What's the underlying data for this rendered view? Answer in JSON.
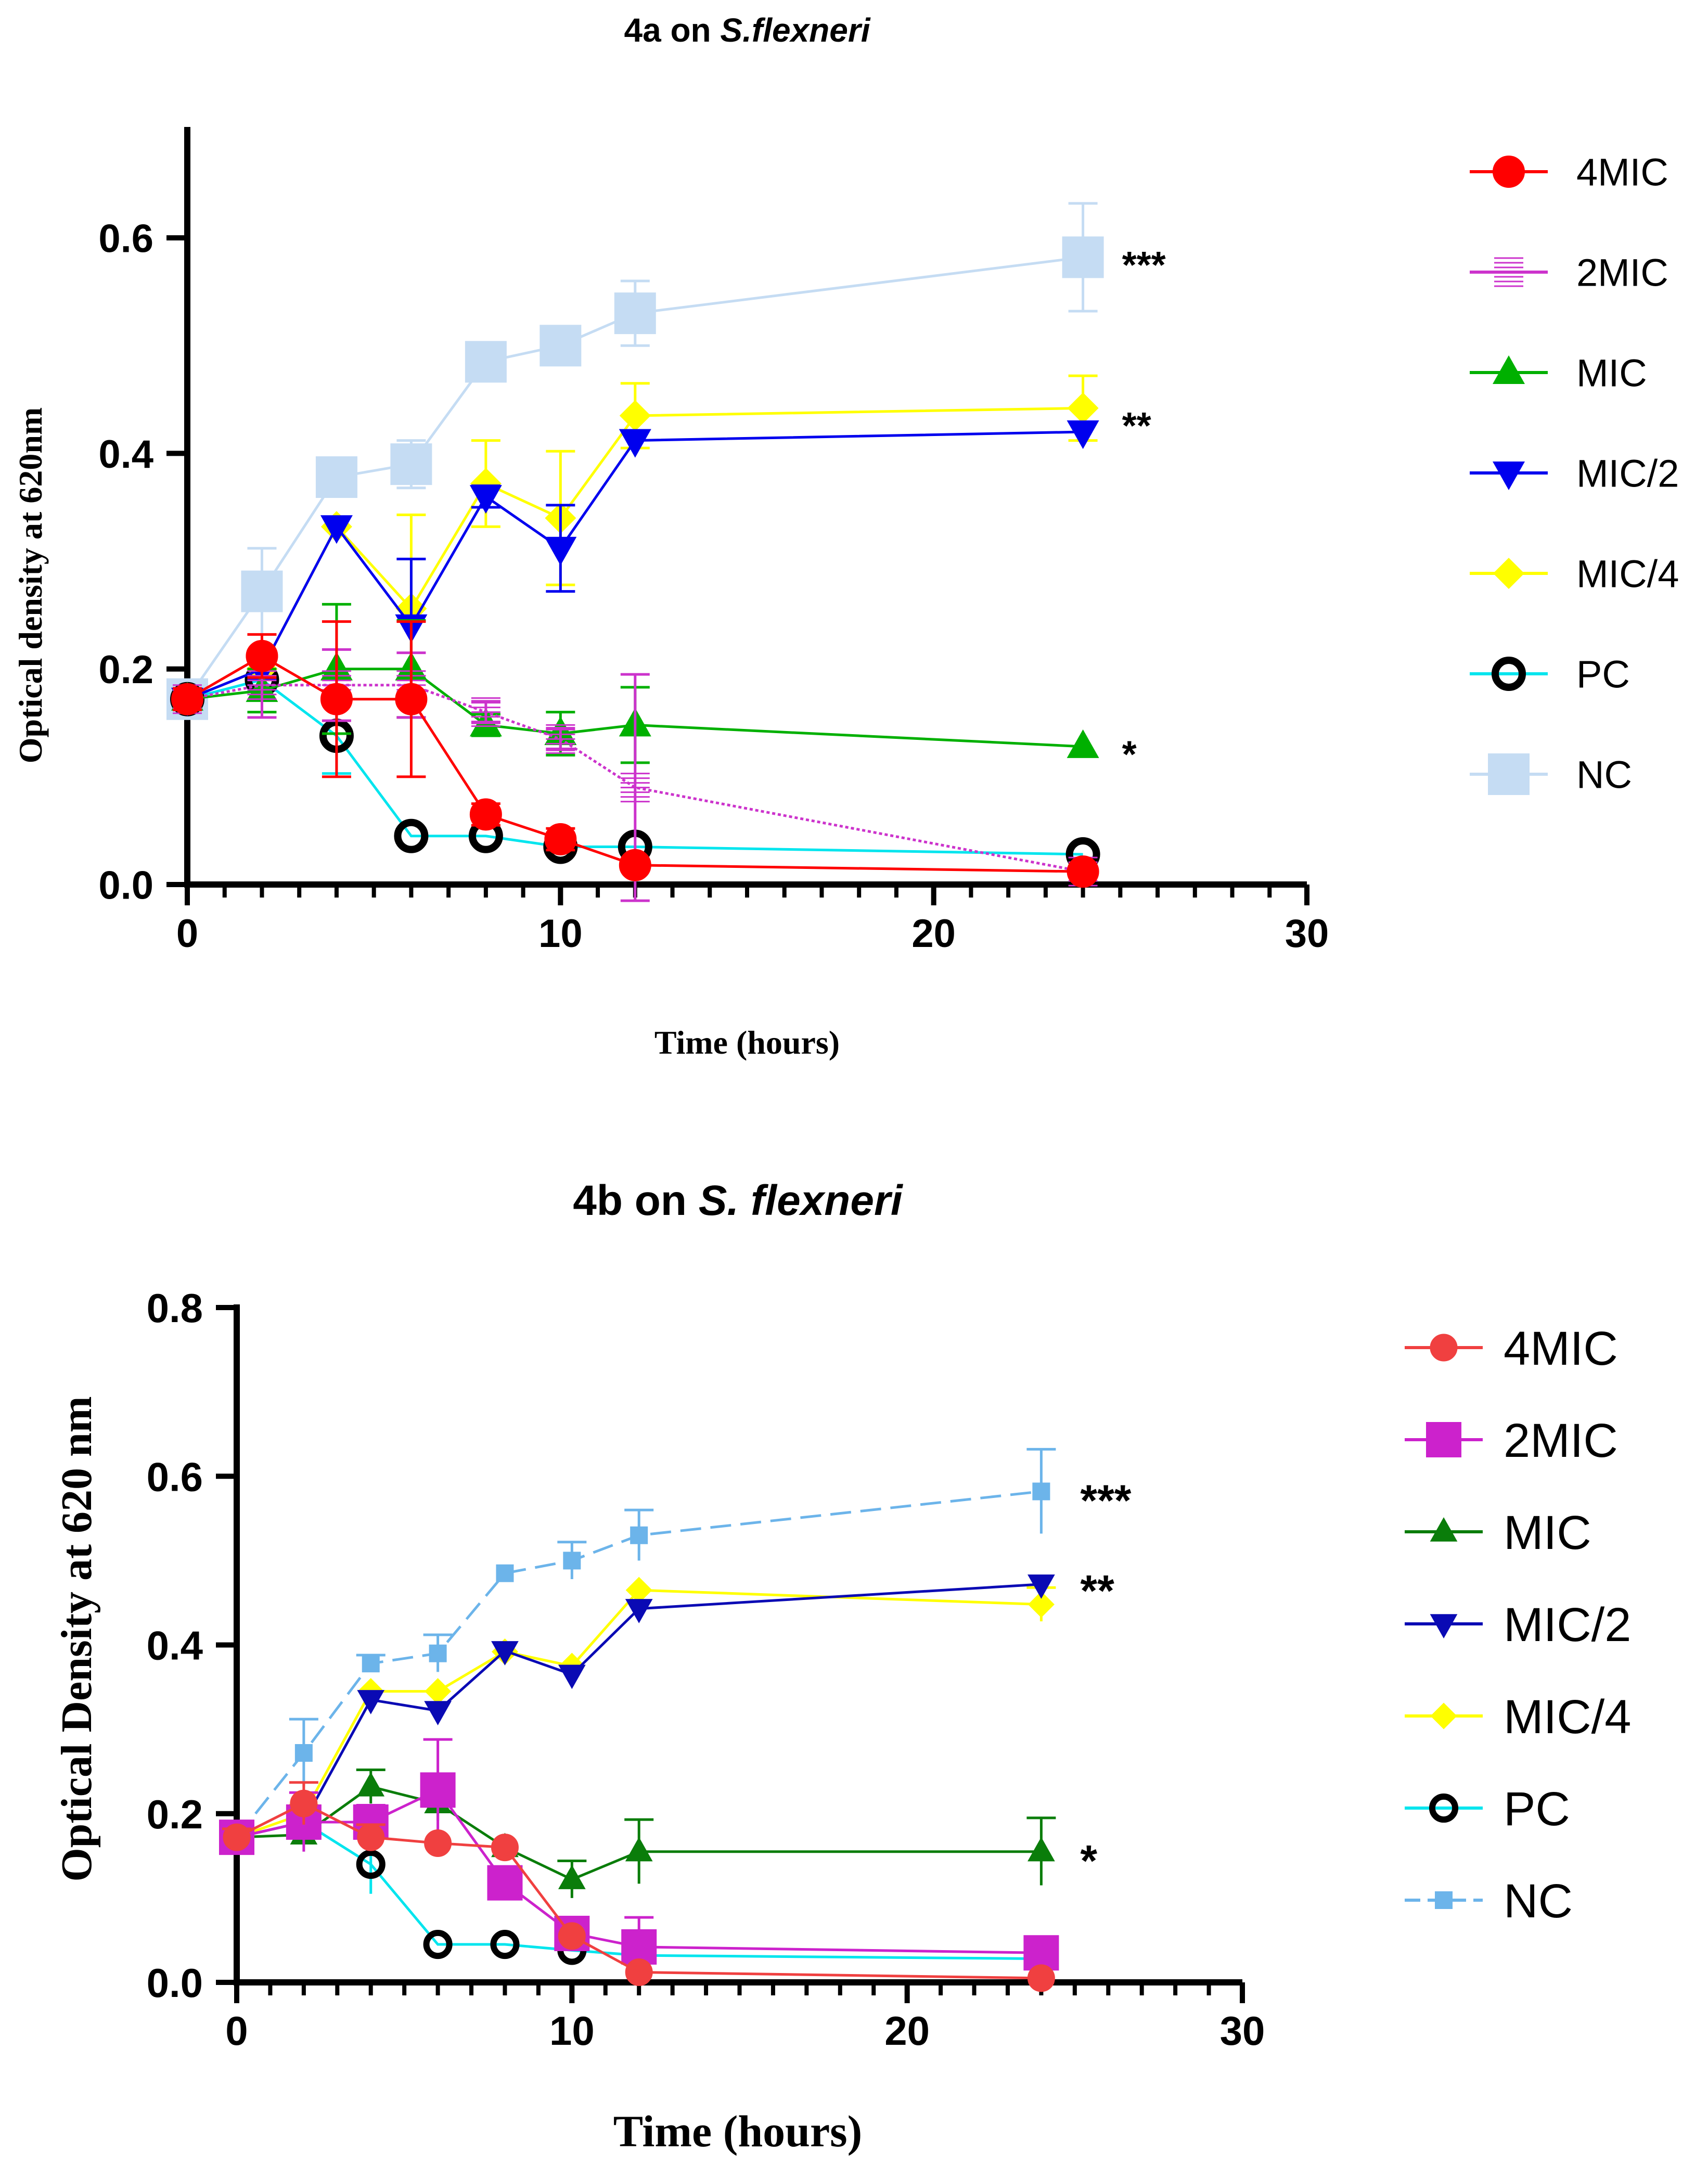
{
  "chart_data": [
    {
      "id": "a",
      "type": "line",
      "title_prefix": "4a on ",
      "title_italic": "S.flexneri",
      "xlabel": "Time (hours)",
      "ylabel": "Optical density at 620nm",
      "xlim": [
        0,
        30
      ],
      "ylim": [
        0,
        0.7
      ],
      "x_ticks": [
        0,
        10,
        20,
        30
      ],
      "x_tick_labels": [
        "0",
        "10",
        "20",
        "30"
      ],
      "y_ticks": [
        0,
        0.2,
        0.4,
        0.6
      ],
      "y_tick_labels": [
        "0.0",
        "0.2",
        "0.4",
        "0.6"
      ],
      "x": [
        0,
        2,
        4,
        6,
        8,
        10,
        12,
        24
      ],
      "series": [
        {
          "name": "4MIC",
          "color": "#ff0000",
          "marker": "circle",
          "values": [
            0.172,
            0.212,
            0.172,
            0.172,
            0.065,
            0.042,
            0.018,
            0.012
          ],
          "errors": [
            0.01,
            0.02,
            0.072,
            0.072,
            0.01,
            0.01,
            0.005,
            0.005
          ]
        },
        {
          "name": "2MIC",
          "color": "#cc33cc",
          "marker": "hsquare",
          "values": [
            0.172,
            0.185,
            0.185,
            0.185,
            0.16,
            0.135,
            0.09,
            0.012
          ],
          "errors": [
            0.01,
            0.03,
            0.033,
            0.03,
            0.01,
            0.01,
            0.105,
            0.005
          ]
        },
        {
          "name": "MIC",
          "color": "#00b000",
          "marker": "triangle-up",
          "values": [
            0.172,
            0.18,
            0.2,
            0.2,
            0.148,
            0.14,
            0.148,
            0.128
          ],
          "errors": [
            0.01,
            0.02,
            0.06,
            0.045,
            0.01,
            0.02,
            0.035,
            0.005
          ]
        },
        {
          "name": "MIC/2",
          "color": "#0000ee",
          "marker": "triangle-down",
          "values": [
            0.172,
            0.2,
            0.332,
            0.24,
            0.36,
            0.312,
            0.412,
            0.42
          ],
          "errors": [
            0.01,
            0.01,
            0.005,
            0.062,
            0.01,
            0.04,
            0.005,
            0.005
          ]
        },
        {
          "name": "MIC/4",
          "color": "#ffff00",
          "marker": "diamond",
          "values": [
            0.172,
            0.2,
            0.332,
            0.256,
            0.372,
            0.34,
            0.435,
            0.442
          ],
          "errors": [
            0.01,
            0.01,
            0.005,
            0.087,
            0.04,
            0.062,
            0.03,
            0.03
          ]
        },
        {
          "name": "PC",
          "color": "#00e5ee",
          "marker": "circle-open",
          "values": [
            0.172,
            0.19,
            0.138,
            0.045,
            0.045,
            0.035,
            0.035,
            0.028
          ],
          "errors": [
            0.01,
            0.01,
            0.035,
            0.005,
            0.005,
            0.005,
            0.005,
            0.005
          ]
        },
        {
          "name": "NC",
          "color": "#c5dcf3",
          "marker": "square",
          "values": [
            0.172,
            0.272,
            0.378,
            0.39,
            0.485,
            0.5,
            0.53,
            0.582
          ],
          "errors": [
            0.01,
            0.04,
            0.01,
            0.022,
            0.005,
            0.01,
            0.03,
            0.05
          ]
        }
      ],
      "significance": [
        {
          "label": "***",
          "x": 24,
          "y": 0.582
        },
        {
          "label": "**",
          "x": 24,
          "y": 0.428
        },
        {
          "label": "*",
          "x": 24,
          "y": 0.128
        }
      ]
    },
    {
      "id": "b",
      "type": "line",
      "title_prefix": "4b on ",
      "title_italic": "S. flexneri",
      "xlabel": "Time (hours)",
      "ylabel": "Optical Density at 620 nm",
      "xlim": [
        0,
        30
      ],
      "ylim": [
        0,
        0.8
      ],
      "x_ticks": [
        0,
        10,
        20,
        30
      ],
      "x_tick_labels": [
        "0",
        "10",
        "20",
        "30"
      ],
      "y_ticks": [
        0,
        0.2,
        0.4,
        0.6,
        0.8
      ],
      "y_tick_labels": [
        "0.0",
        "0.2",
        "0.4",
        "0.6",
        "0.8"
      ],
      "x": [
        0,
        2,
        4,
        6,
        8,
        10,
        12,
        24
      ],
      "series": [
        {
          "name": "4MIC",
          "color": "#f04040",
          "marker": "circle",
          "values": [
            0.172,
            0.212,
            0.172,
            0.165,
            0.16,
            0.055,
            0.012,
            0.005
          ],
          "errors": [
            0.01,
            0.025,
            0.015,
            0.005,
            0.005,
            0.005,
            0.005,
            0.005
          ]
        },
        {
          "name": "2MIC",
          "color": "#cc22cc",
          "marker": "square",
          "values": [
            0.172,
            0.19,
            0.19,
            0.228,
            0.118,
            0.058,
            0.042,
            0.035
          ],
          "errors": [
            0.01,
            0.035,
            0.02,
            0.06,
            0.005,
            0.005,
            0.035,
            0.005
          ]
        },
        {
          "name": "MIC",
          "color": "#0a7d0a",
          "marker": "triangle-up",
          "values": [
            0.172,
            0.175,
            0.232,
            0.212,
            0.16,
            0.122,
            0.155,
            0.155
          ],
          "errors": [
            0.01,
            0.01,
            0.02,
            0.02,
            0.005,
            0.022,
            0.038,
            0.04
          ]
        },
        {
          "name": "MIC/2",
          "color": "#0a0ab4",
          "marker": "triangle-down",
          "values": [
            0.172,
            0.19,
            0.335,
            0.322,
            0.393,
            0.365,
            0.443,
            0.472
          ],
          "errors": [
            0.01,
            0.01,
            0.005,
            0.005,
            0.005,
            0.005,
            0.005,
            0.005
          ]
        },
        {
          "name": "MIC/4",
          "color": "#ffff00",
          "marker": "diamond",
          "values": [
            0.172,
            0.2,
            0.345,
            0.345,
            0.392,
            0.375,
            0.465,
            0.448
          ],
          "errors": [
            0.01,
            0.01,
            0.005,
            0.005,
            0.005,
            0.005,
            0.005,
            0.02
          ]
        },
        {
          "name": "PC",
          "color": "#00e5ee",
          "marker": "circle-open",
          "values": [
            0.172,
            0.19,
            0.14,
            0.045,
            0.045,
            0.038,
            0.032,
            0.028
          ],
          "errors": [
            0.01,
            0.01,
            0.035,
            0.005,
            0.005,
            0.005,
            0.005,
            0.005
          ]
        },
        {
          "name": "NC",
          "color": "#6cb4ea",
          "marker": "square-small",
          "dashed": true,
          "values": [
            0.172,
            0.272,
            0.378,
            0.39,
            0.485,
            0.5,
            0.53,
            0.582
          ],
          "errors": [
            0.01,
            0.04,
            0.01,
            0.022,
            0.005,
            0.022,
            0.03,
            0.05
          ]
        }
      ],
      "significance": [
        {
          "label": "***",
          "x": 24,
          "y": 0.582
        },
        {
          "label": "**",
          "x": 24,
          "y": 0.472
        },
        {
          "label": "*",
          "x": 24,
          "y": 0.155
        }
      ]
    }
  ]
}
